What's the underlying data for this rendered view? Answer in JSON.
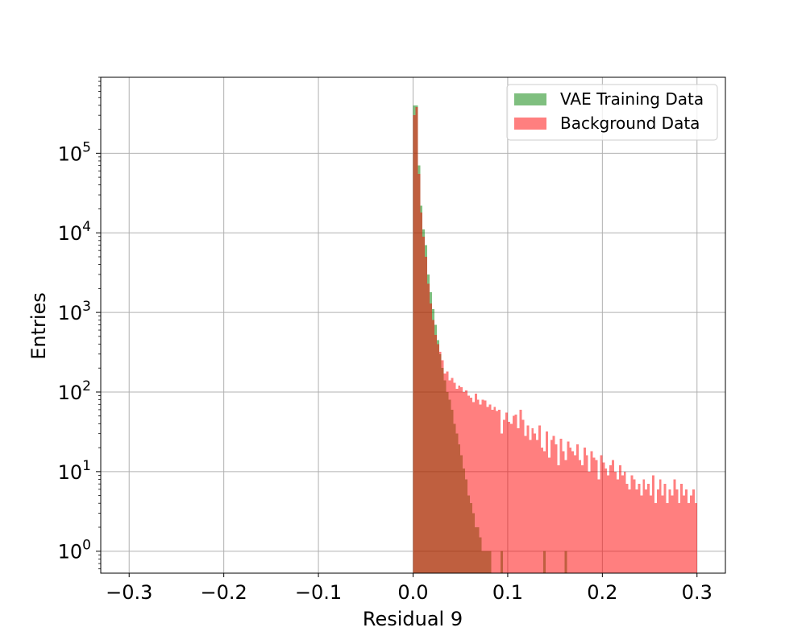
{
  "chart_data": {
    "type": "bar",
    "subtype": "overlaid-histogram",
    "title": "",
    "xlabel": "Residual 9",
    "ylabel": "Entries",
    "xlim": [
      -0.33,
      0.33
    ],
    "ylim": [
      0.53,
      900000
    ],
    "yscale": "log",
    "grid": true,
    "legend_position": "top-right",
    "x_ticks": [
      {
        "value": -0.3,
        "label": "−0.3"
      },
      {
        "value": -0.2,
        "label": "−0.2"
      },
      {
        "value": -0.1,
        "label": "−0.1"
      },
      {
        "value": 0.0,
        "label": "0.0"
      },
      {
        "value": 0.1,
        "label": "0.1"
      },
      {
        "value": 0.2,
        "label": "0.2"
      },
      {
        "value": 0.3,
        "label": "0.3"
      }
    ],
    "y_ticks": [
      {
        "value": 1,
        "base": "10",
        "exp": "0"
      },
      {
        "value": 10,
        "base": "10",
        "exp": "1"
      },
      {
        "value": 100,
        "base": "10",
        "exp": "2"
      },
      {
        "value": 1000,
        "base": "10",
        "exp": "3"
      },
      {
        "value": 10000,
        "base": "10",
        "exp": "4"
      },
      {
        "value": 100000,
        "base": "10",
        "exp": "5"
      }
    ],
    "bins": {
      "start": 0.0,
      "width": 0.0025
    },
    "series": [
      {
        "name": "VAE Training Data",
        "color": "#008000",
        "opacity": 0.5,
        "values": [
          400000,
          400000,
          70000,
          22000,
          11000,
          7000,
          3000,
          1800,
          1100,
          700,
          450,
          300,
          200,
          140,
          100,
          80,
          60,
          40,
          30,
          22,
          16,
          11,
          8,
          5,
          4,
          3,
          2,
          2,
          1.5,
          1,
          1,
          1,
          1,
          0,
          0,
          0,
          0,
          1,
          0,
          0,
          0,
          0,
          0,
          0,
          0,
          0,
          0,
          0,
          0,
          0,
          0,
          0,
          0,
          0,
          0,
          1,
          0,
          0,
          0,
          0,
          0,
          0,
          0,
          0,
          1,
          0,
          0,
          0,
          0,
          0,
          0,
          0,
          0,
          0,
          0,
          0,
          0,
          0,
          0,
          0,
          0,
          0,
          0,
          0,
          0,
          0,
          0,
          0,
          0,
          0,
          0,
          0,
          0,
          0,
          0,
          0,
          0,
          0,
          0,
          0,
          0,
          0,
          0,
          0,
          0,
          0,
          0,
          0,
          0,
          0,
          0,
          0,
          0,
          0,
          0,
          0,
          0,
          0,
          0,
          0
        ]
      },
      {
        "name": "Background Data",
        "color": "#ff0000",
        "opacity": 0.5,
        "values": [
          300000,
          380000,
          55000,
          18000,
          9000,
          5000,
          2300,
          1300,
          800,
          520,
          400,
          320,
          250,
          170,
          180,
          140,
          150,
          130,
          110,
          120,
          115,
          100,
          105,
          90,
          85,
          75,
          95,
          80,
          70,
          80,
          78,
          65,
          70,
          60,
          65,
          58,
          60,
          30,
          45,
          55,
          42,
          40,
          50,
          52,
          35,
          60,
          45,
          28,
          38,
          25,
          35,
          30,
          25,
          38,
          20,
          18,
          32,
          15,
          25,
          28,
          22,
          12,
          26,
          18,
          14,
          24,
          20,
          18,
          16,
          22,
          14,
          12,
          20,
          16,
          10,
          18,
          15,
          14,
          8,
          16,
          13,
          11,
          9,
          12,
          14,
          10,
          8,
          12,
          9,
          10,
          7,
          6,
          9,
          8,
          6,
          7,
          5,
          8,
          6,
          7,
          5,
          9,
          4,
          6,
          8,
          5,
          7,
          4,
          6,
          5,
          8,
          6,
          4,
          7,
          5,
          6,
          4,
          5,
          6,
          4
        ]
      }
    ]
  }
}
